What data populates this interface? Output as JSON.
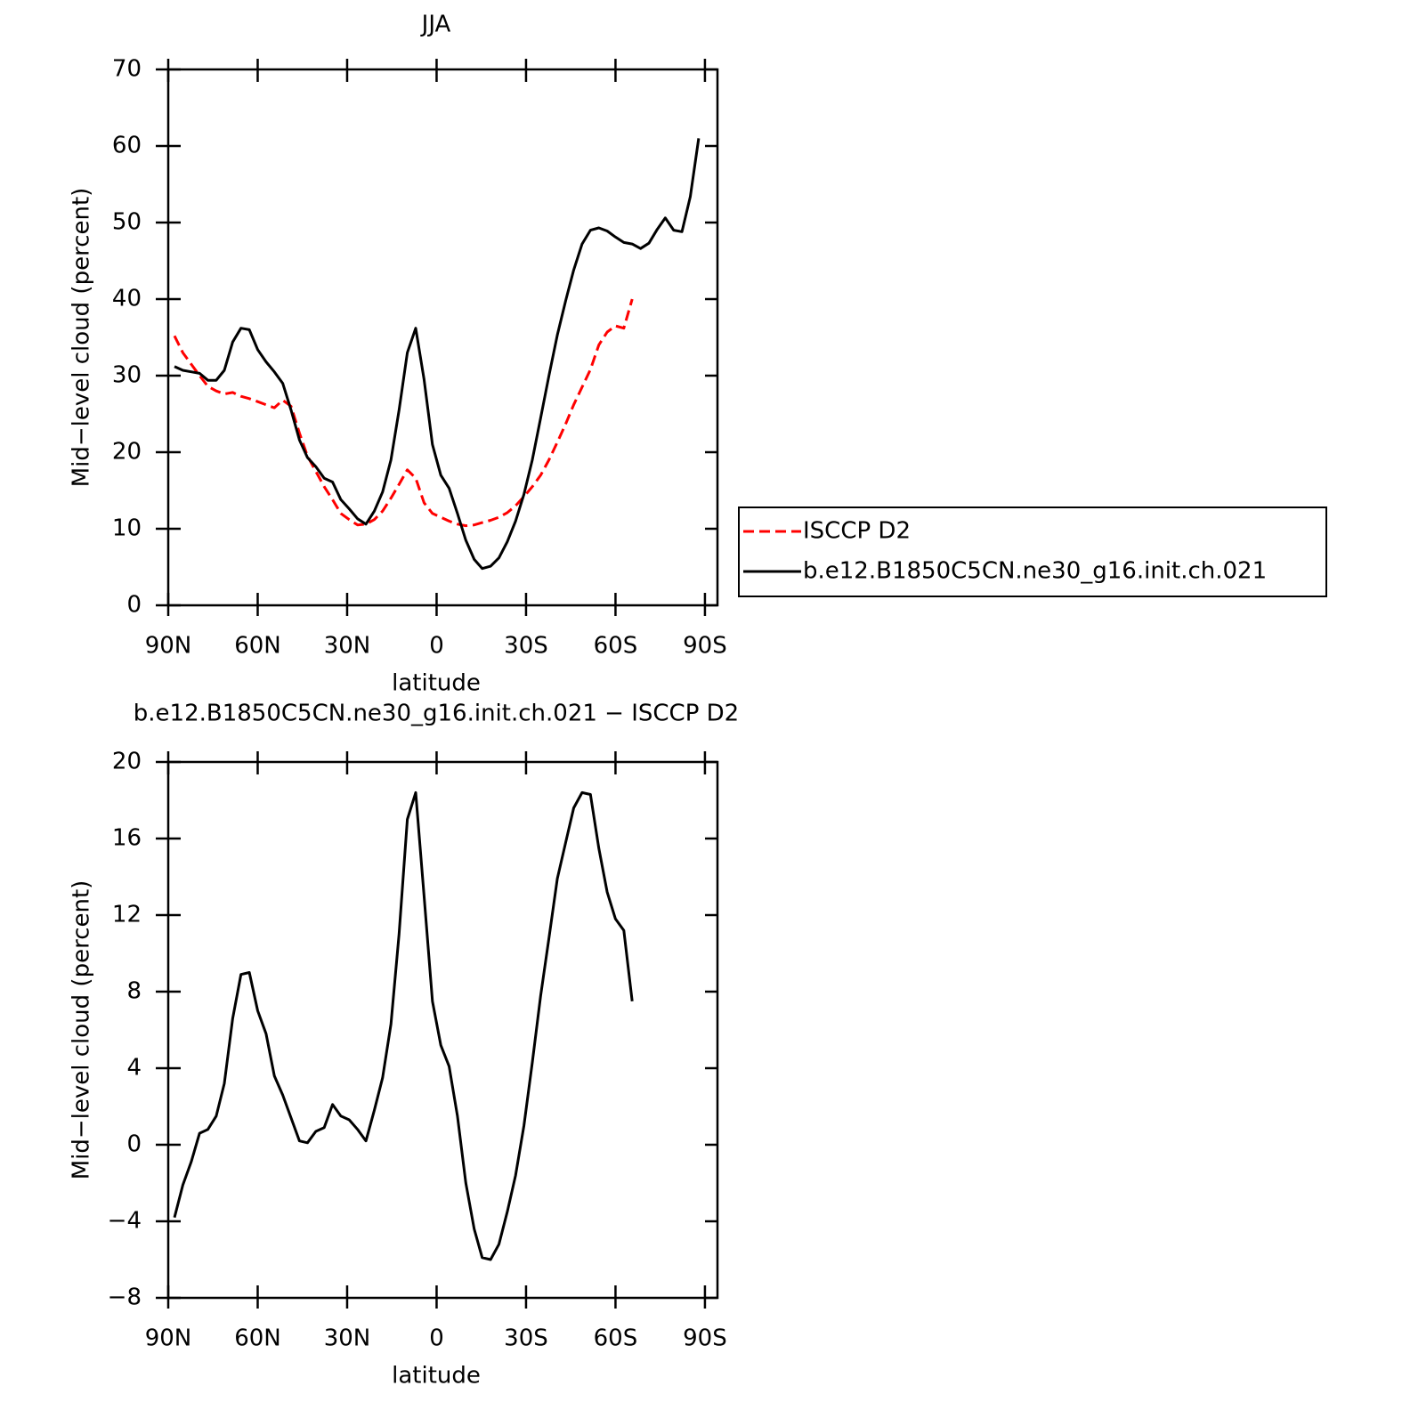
{
  "chart_data": [
    {
      "type": "line",
      "title": "JJA",
      "xlabel": "latitude",
      "ylabel": "Mid−level cloud (percent)",
      "x": [
        87.9,
        85.1,
        82.3,
        79.5,
        76.7,
        73.9,
        71.2,
        68.4,
        65.6,
        62.8,
        60,
        57.2,
        54.4,
        51.6,
        48.8,
        46,
        43.3,
        40.5,
        37.7,
        34.9,
        32.1,
        29.3,
        26.5,
        23.7,
        20.9,
        18.1,
        15.3,
        12.6,
        9.8,
        7,
        4.2,
        1.4,
        -1.4,
        -4.2,
        -7,
        -9.8,
        -12.6,
        -15.3,
        -18.1,
        -20.9,
        -23.7,
        -26.5,
        -29.3,
        -32.1,
        -34.9,
        -37.7,
        -40.5,
        -43.3,
        -46,
        -48.8,
        -51.6,
        -54.4,
        -57.2,
        -60,
        -62.8,
        -65.6,
        -68.4,
        -71.2,
        -74,
        -76.7,
        -79.5,
        -82.3,
        -85.1,
        -87.9
      ],
      "series": [
        {
          "name": "ISCCP D2",
          "color": "#ff0000",
          "dashed": true,
          "values": [
            35.2,
            33,
            31.5,
            30,
            28.6,
            28,
            27.6,
            27.8,
            27.3,
            27,
            26.6,
            26.2,
            25.8,
            26.8,
            26,
            22.5,
            19.5,
            17.5,
            15.5,
            13.8,
            12,
            11.2,
            10.5,
            10.6,
            11.2,
            12.3,
            14,
            15.8,
            17.7,
            16.6,
            13.4,
            12,
            11.5,
            11,
            10.6,
            10.4,
            10.5,
            10.8,
            11.1,
            11.5,
            12.1,
            13,
            14.2,
            15.5,
            17,
            19,
            21.3,
            23.7,
            26.2,
            28.5,
            30.8,
            34,
            35.7,
            36.5,
            36.2,
            40,
            null,
            null,
            null,
            null,
            null,
            null,
            null,
            null
          ]
        },
        {
          "name": "b.e12.B1850C5CN.ne30_g16.init.ch.021",
          "color": "#000000",
          "dashed": false,
          "values": [
            31.2,
            30.7,
            30.5,
            30.3,
            29.4,
            29.4,
            30.7,
            34.4,
            36.2,
            36,
            33.4,
            31.8,
            30.5,
            29,
            25.5,
            21.6,
            19.3,
            18.1,
            16.6,
            16.1,
            13.8,
            12.6,
            11.3,
            10.6,
            12.3,
            14.8,
            19,
            25.5,
            33,
            36.2,
            29.5,
            21,
            17,
            15.3,
            12,
            8.5,
            6,
            4.8,
            5.1,
            6.2,
            8.3,
            11,
            14.5,
            19,
            24.5,
            30,
            35.3,
            39.8,
            43.8,
            47.2,
            49,
            49.3,
            48.9,
            48.1,
            47.4,
            47.2,
            46.6,
            47.3,
            49.1,
            50.6,
            49,
            48.8,
            53.4,
            61
          ]
        }
      ],
      "xlim": [
        90,
        -94.2
      ],
      "xticks": [
        {
          "value": 90,
          "label": "90N"
        },
        {
          "value": 60,
          "label": "60N"
        },
        {
          "value": 30,
          "label": "30N"
        },
        0,
        {
          "value": -30,
          "label": "30S"
        },
        {
          "value": -60,
          "label": "60S"
        },
        {
          "value": -90,
          "label": "90S"
        }
      ],
      "ylim": [
        0,
        70
      ],
      "yticks": [
        0,
        10,
        20,
        30,
        40,
        50,
        60,
        70
      ],
      "legend": "right"
    },
    {
      "type": "line",
      "title": "b.e12.B1850C5CN.ne30_g16.init.ch.021 − ISCCP D2",
      "xlabel": "latitude",
      "ylabel": "Mid−level cloud (percent)",
      "x": [
        87.9,
        85.1,
        82.3,
        79.5,
        76.7,
        73.9,
        71.2,
        68.4,
        65.6,
        62.8,
        60,
        57.2,
        54.4,
        51.6,
        48.8,
        46,
        43.3,
        40.5,
        37.7,
        34.9,
        32.1,
        29.3,
        26.5,
        23.7,
        20.9,
        18.1,
        15.3,
        12.6,
        9.8,
        7,
        4.2,
        1.4,
        -1.4,
        -4.2,
        -7,
        -9.8,
        -12.6,
        -15.3,
        -18.1,
        -20.9,
        -23.7,
        -26.5,
        -29.3,
        -32.1,
        -34.9,
        -37.7,
        -40.5,
        -43.3,
        -46,
        -48.8,
        -51.6,
        -54.4,
        -57.2,
        -60,
        -62.8,
        -65.6,
        -68.4,
        -71.2,
        -74,
        -76.7,
        -79.5,
        -82.3,
        -85.1,
        -87.9
      ],
      "series": [
        {
          "color": "#000000",
          "dashed": false,
          "values": [
            -3.8,
            -2.1,
            -0.9,
            0.6,
            0.8,
            1.5,
            3.2,
            6.6,
            8.9,
            9,
            7,
            5.8,
            3.6,
            2.6,
            1.4,
            0.2,
            0.1,
            0.7,
            0.9,
            2.1,
            1.5,
            1.3,
            0.8,
            0.2,
            1.8,
            3.5,
            6.3,
            11,
            17,
            18.4,
            13,
            7.5,
            5.2,
            4.1,
            1.5,
            -2,
            -4.4,
            -5.9,
            -6,
            -5.2,
            -3.5,
            -1.6,
            1,
            4.3,
            7.8,
            10.8,
            13.9,
            15.8,
            17.6,
            18.4,
            18.3,
            15.5,
            13.2,
            11.8,
            11.2,
            7.5,
            null,
            null,
            null,
            null,
            null,
            null,
            null,
            null
          ]
        }
      ],
      "xlim": [
        90,
        -94.2
      ],
      "xticks": [
        {
          "value": 90,
          "label": "90N"
        },
        {
          "value": 60,
          "label": "60N"
        },
        {
          "value": 30,
          "label": "30N"
        },
        0,
        {
          "value": -30,
          "label": "30S"
        },
        {
          "value": -60,
          "label": "60S"
        },
        {
          "value": -90,
          "label": "90S"
        }
      ],
      "ylim": [
        -8,
        20
      ],
      "yticks": [
        {
          "value": -8,
          "label": "−8"
        },
        {
          "value": -4,
          "label": "−4"
        },
        0,
        4,
        8,
        12,
        16,
        20
      ]
    }
  ]
}
